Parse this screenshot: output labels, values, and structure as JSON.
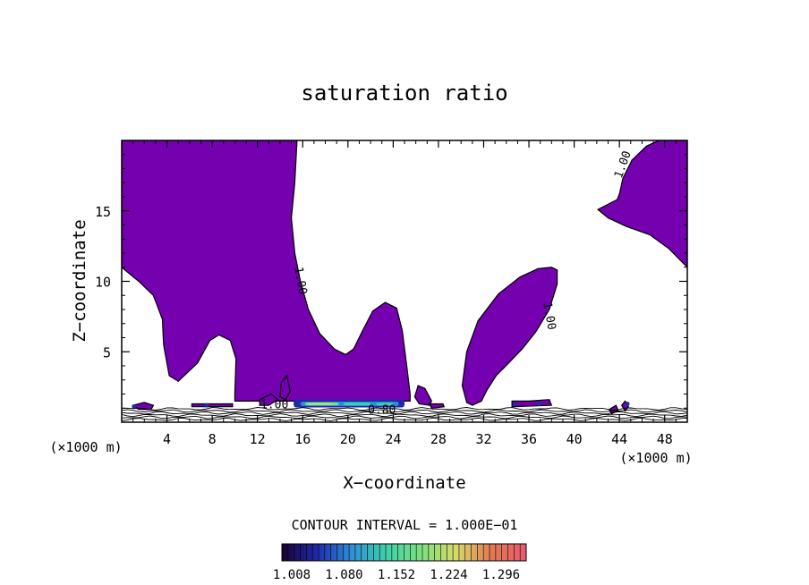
{
  "chart_data": {
    "type": "contour",
    "title": "saturation ratio",
    "xlabel": "X−coordinate",
    "ylabel": "Z−coordinate",
    "x_unit_label": "(×1000 m)",
    "z_unit_label": "(×1000 m)",
    "xlim": [
      0,
      50
    ],
    "ylim": [
      0,
      20
    ],
    "x_ticks": [
      4,
      8,
      12,
      16,
      20,
      24,
      28,
      32,
      36,
      40,
      44,
      48
    ],
    "y_ticks": [
      5,
      10,
      15
    ],
    "contour_interval_text": "CONTOUR INTERVAL = 1.000E−01",
    "contour_labels": [
      {
        "text": "1.00",
        "x": 15.5,
        "z": 10
      },
      {
        "text": "1.00",
        "x": 37.5,
        "z": 7.5
      },
      {
        "text": "1.00",
        "x": 44.6,
        "z": 18.2
      },
      {
        "text": "1.00",
        "x": 13.5,
        "z": 1.0
      },
      {
        "text": "0.80",
        "x": 23.0,
        "z": 0.6
      }
    ],
    "supersaturated_fill_color": "#7400b0",
    "colorbar": {
      "tick_labels": [
        "1.008",
        "1.080",
        "1.152",
        "1.224",
        "1.296"
      ],
      "colors": [
        "#1a0033",
        "#1f2aa8",
        "#2f8fd6",
        "#3fd0a8",
        "#7fe07f",
        "#d8d86a",
        "#e07a50",
        "#e85a70"
      ]
    }
  }
}
